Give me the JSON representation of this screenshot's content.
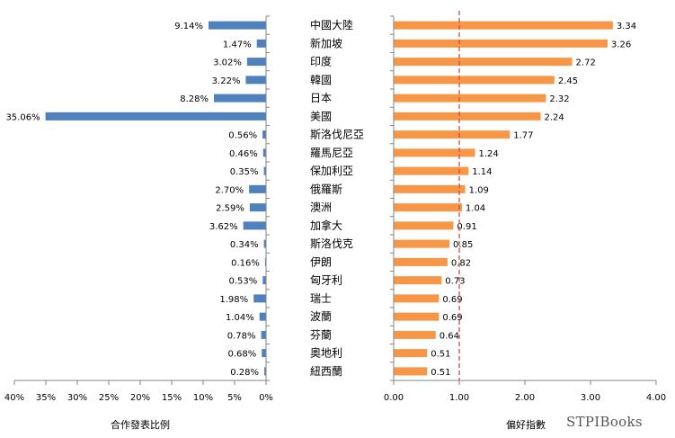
{
  "watermark": "STPIBooks",
  "colors": {
    "left_bar": "#4f81bd",
    "right_bar": "#f79646",
    "reference_line": "#c0504d",
    "axis": "#868686",
    "text": "#000000"
  },
  "chart_data": [
    {
      "type": "bar",
      "orientation": "horizontal",
      "direction": "right-to-left",
      "categories": [
        "中國大陸",
        "新加坡",
        "印度",
        "韓國",
        "日本",
        "美國",
        "斯洛伐尼亞",
        "羅馬尼亞",
        "保加利亞",
        "俄羅斯",
        "澳洲",
        "加拿大",
        "斯洛伐克",
        "伊朗",
        "匈牙利",
        "瑞士",
        "波蘭",
        "芬蘭",
        "奧地利",
        "紐西蘭"
      ],
      "values": [
        9.14,
        1.47,
        3.02,
        3.22,
        8.28,
        35.06,
        0.56,
        0.46,
        0.35,
        2.7,
        2.59,
        3.62,
        0.34,
        0.16,
        0.53,
        1.98,
        1.04,
        0.78,
        0.68,
        0.28
      ],
      "value_labels": [
        "9.14%",
        "1.47%",
        "3.02%",
        "3.22%",
        "8.28%",
        "35.06%",
        "0.56%",
        "0.46%",
        "0.35%",
        "2.70%",
        "2.59%",
        "3.62%",
        "0.34%",
        "0.16%",
        "0.53%",
        "1.98%",
        "1.04%",
        "0.78%",
        "0.68%",
        "0.28%"
      ],
      "xlabel": "合作發表比例",
      "xlim": [
        0,
        40
      ],
      "ticks": [
        40,
        35,
        30,
        25,
        20,
        15,
        10,
        5,
        0
      ],
      "tick_labels": [
        "40%",
        "35%",
        "30%",
        "25%",
        "20%",
        "15%",
        "10%",
        "5%",
        "0%"
      ],
      "grid": false
    },
    {
      "type": "bar",
      "orientation": "horizontal",
      "categories": [
        "中國大陸",
        "新加坡",
        "印度",
        "韓國",
        "日本",
        "美國",
        "斯洛伐尼亞",
        "羅馬尼亞",
        "保加利亞",
        "俄羅斯",
        "澳洲",
        "加拿大",
        "斯洛伐克",
        "伊朗",
        "匈牙利",
        "瑞士",
        "波蘭",
        "芬蘭",
        "奧地利",
        "紐西蘭"
      ],
      "values": [
        3.34,
        3.26,
        2.72,
        2.45,
        2.32,
        2.24,
        1.77,
        1.24,
        1.14,
        1.09,
        1.04,
        0.91,
        0.85,
        0.82,
        0.73,
        0.69,
        0.69,
        0.64,
        0.51,
        0.51
      ],
      "value_labels": [
        "3.34",
        "3.26",
        "2.72",
        "2.45",
        "2.32",
        "2.24",
        "1.77",
        "1.24",
        "1.14",
        "1.09",
        "1.04",
        "0.91",
        "0.85",
        "0.82",
        "0.73",
        "0.69",
        "0.69",
        "0.64",
        "0.51",
        "0.51"
      ],
      "xlabel": "偏好指數",
      "xlim": [
        0,
        4
      ],
      "ticks": [
        0,
        1,
        2,
        3,
        4
      ],
      "tick_labels": [
        "0.00",
        "1.00",
        "2.00",
        "3.00",
        "4.00"
      ],
      "reference_line": 1.0,
      "grid": false
    }
  ]
}
